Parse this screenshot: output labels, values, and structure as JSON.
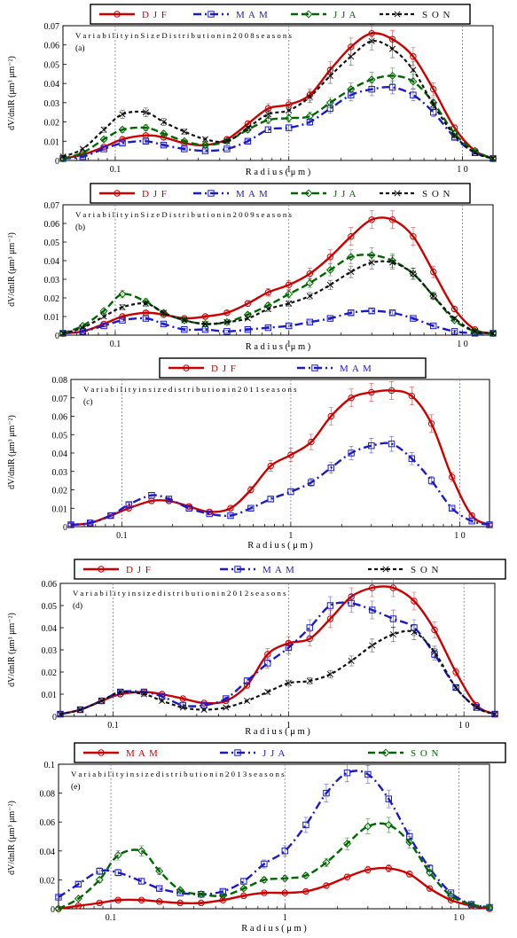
{
  "figure": {
    "ylabel": "dV/dnlR (μm³ μm⁻²)",
    "xlabel": "R a d i u s  ( μ m )"
  },
  "series_styles": {
    "DJF": {
      "color": "#cc0000",
      "dash": "",
      "marker": "circle",
      "width": 2.4
    },
    "MAM": {
      "color": "#1a1acc",
      "dash": "9,4,2,4",
      "marker": "square",
      "width": 2.4
    },
    "JJA": {
      "color": "#006600",
      "dash": "8,4",
      "marker": "diamond",
      "width": 2.4
    },
    "SON": {
      "color": "#111111",
      "dash": "4,3",
      "marker": "x",
      "width": 2.2
    }
  },
  "chart_data": [
    {
      "type": "line",
      "panel": "(a)",
      "title": "Variability in Size Distribution in 2008 seasons",
      "xscale": "log",
      "xlim": [
        0.05,
        15
      ],
      "ylim": [
        0,
        0.07
      ],
      "yticks": [
        "0",
        "0.01",
        "0.02",
        "0.03",
        "0.04",
        "0.05",
        "0.06",
        "0.07"
      ],
      "xticks": [
        {
          "v": 0.1,
          "label": "0.1"
        },
        {
          "v": 1,
          "label": "1"
        },
        {
          "v": 10,
          "label": "1 0"
        }
      ],
      "legend": [
        "DJF",
        "MAM",
        "JJA",
        "SON"
      ],
      "x": [
        0.05,
        0.065,
        0.086,
        0.11,
        0.15,
        0.19,
        0.25,
        0.33,
        0.44,
        0.58,
        0.76,
        1.0,
        1.32,
        1.73,
        2.28,
        3.0,
        3.95,
        5.2,
        6.8,
        9.0,
        11.8,
        15.0
      ],
      "series": [
        {
          "name": "DJF",
          "values": [
            0.001,
            0.003,
            0.007,
            0.011,
            0.013,
            0.012,
            0.009,
            0.008,
            0.011,
            0.019,
            0.027,
            0.029,
            0.034,
            0.047,
            0.059,
            0.066,
            0.063,
            0.054,
            0.037,
            0.017,
            0.005,
            0.001
          ]
        },
        {
          "name": "MAM",
          "values": [
            0.001,
            0.002,
            0.006,
            0.009,
            0.01,
            0.008,
            0.006,
            0.005,
            0.006,
            0.01,
            0.016,
            0.017,
            0.02,
            0.027,
            0.034,
            0.037,
            0.038,
            0.034,
            0.025,
            0.012,
            0.004,
            0.001
          ]
        },
        {
          "name": "JJA",
          "values": [
            0.001,
            0.004,
            0.011,
            0.016,
            0.017,
            0.014,
            0.01,
            0.008,
            0.01,
            0.016,
            0.021,
            0.022,
            0.023,
            0.03,
            0.037,
            0.042,
            0.044,
            0.041,
            0.03,
            0.014,
            0.005,
            0.001
          ]
        },
        {
          "name": "SON",
          "values": [
            0.002,
            0.006,
            0.016,
            0.024,
            0.025,
            0.02,
            0.015,
            0.011,
            0.01,
            0.017,
            0.024,
            0.026,
            0.033,
            0.044,
            0.054,
            0.062,
            0.058,
            0.047,
            0.029,
            0.013,
            0.004,
            0.001
          ]
        }
      ]
    },
    {
      "type": "line",
      "panel": "(b)",
      "title": "Variability in Size Distribution in 2009 seasons",
      "xscale": "log",
      "xlim": [
        0.05,
        15
      ],
      "ylim": [
        0,
        0.07
      ],
      "yticks": [
        "0",
        "0.01",
        "0.02",
        "0.03",
        "0.04",
        "0.05",
        "0.06",
        "0.07"
      ],
      "xticks": [
        {
          "v": 0.1,
          "label": "0.1"
        },
        {
          "v": 1,
          "label": "1"
        },
        {
          "v": 10,
          "label": "1 0"
        }
      ],
      "legend": [
        "DJF",
        "MAM",
        "JJA",
        "SON"
      ],
      "x": [
        0.05,
        0.065,
        0.086,
        0.11,
        0.15,
        0.19,
        0.25,
        0.33,
        0.44,
        0.58,
        0.76,
        1.0,
        1.32,
        1.73,
        2.28,
        3.0,
        3.95,
        5.2,
        6.8,
        9.0,
        11.8,
        15.0
      ],
      "series": [
        {
          "name": "DJF",
          "values": [
            0.001,
            0.002,
            0.006,
            0.01,
            0.012,
            0.011,
            0.009,
            0.01,
            0.012,
            0.017,
            0.023,
            0.027,
            0.033,
            0.042,
            0.053,
            0.062,
            0.062,
            0.053,
            0.034,
            0.014,
            0.003,
            0.001
          ]
        },
        {
          "name": "MAM",
          "values": [
            0.001,
            0.002,
            0.005,
            0.008,
            0.009,
            0.006,
            0.003,
            0.003,
            0.002,
            0.003,
            0.004,
            0.005,
            0.007,
            0.009,
            0.012,
            0.013,
            0.012,
            0.009,
            0.005,
            0.002,
            0.001,
            0.001
          ]
        },
        {
          "name": "JJA",
          "values": [
            0.001,
            0.005,
            0.013,
            0.022,
            0.018,
            0.012,
            0.008,
            0.006,
            0.007,
            0.011,
            0.016,
            0.022,
            0.028,
            0.035,
            0.042,
            0.043,
            0.04,
            0.033,
            0.021,
            0.008,
            0.002,
            0.001
          ]
        },
        {
          "name": "SON",
          "values": [
            0.001,
            0.004,
            0.01,
            0.015,
            0.017,
            0.012,
            0.008,
            0.006,
            0.007,
            0.009,
            0.014,
            0.017,
            0.021,
            0.027,
            0.034,
            0.039,
            0.039,
            0.033,
            0.021,
            0.009,
            0.002,
            0.001
          ]
        }
      ]
    },
    {
      "type": "line",
      "panel": "(c)",
      "title": "Variability in size distribution in 2011 seasons",
      "xscale": "log",
      "xlim": [
        0.05,
        15
      ],
      "ylim": [
        0,
        0.08
      ],
      "yticks": [
        "0",
        "0.01",
        "0.02",
        "0.03",
        "0.04",
        "0.05",
        "0.06",
        "0.07",
        "0.08"
      ],
      "xticks": [
        {
          "v": 0.1,
          "label": "0.1"
        },
        {
          "v": 1,
          "label": "1"
        },
        {
          "v": 10,
          "label": "1 0"
        }
      ],
      "legend": [
        "DJF",
        "MAM"
      ],
      "x": [
        0.05,
        0.065,
        0.086,
        0.11,
        0.15,
        0.19,
        0.25,
        0.33,
        0.44,
        0.58,
        0.76,
        1.0,
        1.32,
        1.73,
        2.28,
        3.0,
        3.95,
        5.2,
        6.8,
        9.0,
        11.8,
        15.0
      ],
      "series": [
        {
          "name": "DJF",
          "values": [
            0.001,
            0.002,
            0.006,
            0.01,
            0.014,
            0.014,
            0.011,
            0.008,
            0.01,
            0.02,
            0.033,
            0.039,
            0.046,
            0.06,
            0.07,
            0.073,
            0.074,
            0.071,
            0.056,
            0.027,
            0.006,
            0.001
          ]
        },
        {
          "name": "MAM",
          "values": [
            0.001,
            0.002,
            0.006,
            0.012,
            0.017,
            0.015,
            0.01,
            0.007,
            0.006,
            0.01,
            0.015,
            0.019,
            0.024,
            0.032,
            0.04,
            0.044,
            0.045,
            0.037,
            0.025,
            0.01,
            0.003,
            0.001
          ]
        }
      ]
    },
    {
      "type": "line",
      "panel": "(d)",
      "title": "Variability in size distribution in 2012 seasons",
      "xscale": "log",
      "xlim": [
        0.05,
        15
      ],
      "ylim": [
        0,
        0.06
      ],
      "yticks": [
        "0",
        "0.01",
        "0.02",
        "0.03",
        "0.04",
        "0.05",
        "0.06"
      ],
      "xticks": [
        {
          "v": 0.1,
          "label": "0.1"
        },
        {
          "v": 1,
          "label": "1"
        },
        {
          "v": 10,
          "label": "1 0"
        }
      ],
      "legend": [
        "DJF",
        "MAM",
        "SON"
      ],
      "x": [
        0.05,
        0.065,
        0.086,
        0.11,
        0.15,
        0.19,
        0.25,
        0.33,
        0.44,
        0.58,
        0.76,
        1.0,
        1.32,
        1.73,
        2.28,
        3.0,
        3.95,
        5.2,
        6.8,
        9.0,
        11.8,
        15.0
      ],
      "series": [
        {
          "name": "DJF",
          "values": [
            0.001,
            0.003,
            0.007,
            0.01,
            0.011,
            0.01,
            0.008,
            0.006,
            0.007,
            0.014,
            0.028,
            0.033,
            0.035,
            0.044,
            0.054,
            0.058,
            0.058,
            0.052,
            0.039,
            0.02,
            0.005,
            0.001
          ]
        },
        {
          "name": "MAM",
          "values": [
            0.001,
            0.003,
            0.007,
            0.011,
            0.011,
            0.009,
            0.005,
            0.005,
            0.008,
            0.016,
            0.024,
            0.031,
            0.04,
            0.05,
            0.051,
            0.048,
            0.044,
            0.04,
            0.028,
            0.013,
            0.004,
            0.001
          ]
        },
        {
          "name": "SON",
          "values": [
            0.001,
            0.003,
            0.007,
            0.011,
            0.01,
            0.007,
            0.004,
            0.003,
            0.004,
            0.007,
            0.011,
            0.015,
            0.016,
            0.019,
            0.025,
            0.032,
            0.037,
            0.038,
            0.029,
            0.013,
            0.004,
            0.001
          ]
        }
      ]
    },
    {
      "type": "line",
      "panel": "(e)",
      "title": "Variability in size distribution in 2013 seasons",
      "xscale": "log",
      "xlim": [
        0.05,
        15
      ],
      "ylim": [
        0,
        0.1
      ],
      "yticks": [
        "0",
        "0.02",
        "0.04",
        "0.06",
        "0.08",
        "0.1"
      ],
      "xticks": [
        {
          "v": 0.1,
          "label": "0.1"
        },
        {
          "v": 1,
          "label": "1"
        },
        {
          "v": 10,
          "label": "1 0"
        }
      ],
      "legend": [
        "MAM",
        "JJA",
        "SON"
      ],
      "series_style_map": {
        "MAM": "DJF",
        "JJA": "MAM",
        "SON": "JJA"
      },
      "x": [
        0.05,
        0.065,
        0.086,
        0.11,
        0.15,
        0.19,
        0.25,
        0.33,
        0.44,
        0.58,
        0.76,
        1.0,
        1.32,
        1.73,
        2.28,
        3.0,
        3.95,
        5.2,
        6.8,
        9.0,
        11.8,
        15.0
      ],
      "series": [
        {
          "name": "MAM",
          "values": [
            0.0,
            0.002,
            0.004,
            0.006,
            0.006,
            0.005,
            0.004,
            0.004,
            0.006,
            0.009,
            0.011,
            0.011,
            0.012,
            0.016,
            0.022,
            0.027,
            0.028,
            0.024,
            0.014,
            0.006,
            0.002,
            0.0
          ]
        },
        {
          "name": "JJA",
          "values": [
            0.008,
            0.017,
            0.026,
            0.025,
            0.019,
            0.014,
            0.011,
            0.01,
            0.012,
            0.019,
            0.031,
            0.04,
            0.058,
            0.08,
            0.094,
            0.093,
            0.076,
            0.05,
            0.028,
            0.011,
            0.003,
            0.001
          ]
        },
        {
          "name": "SON",
          "values": [
            0.0,
            0.007,
            0.02,
            0.037,
            0.04,
            0.026,
            0.013,
            0.01,
            0.009,
            0.014,
            0.02,
            0.021,
            0.023,
            0.032,
            0.045,
            0.057,
            0.058,
            0.046,
            0.025,
            0.009,
            0.003,
            0.001
          ]
        }
      ]
    }
  ]
}
